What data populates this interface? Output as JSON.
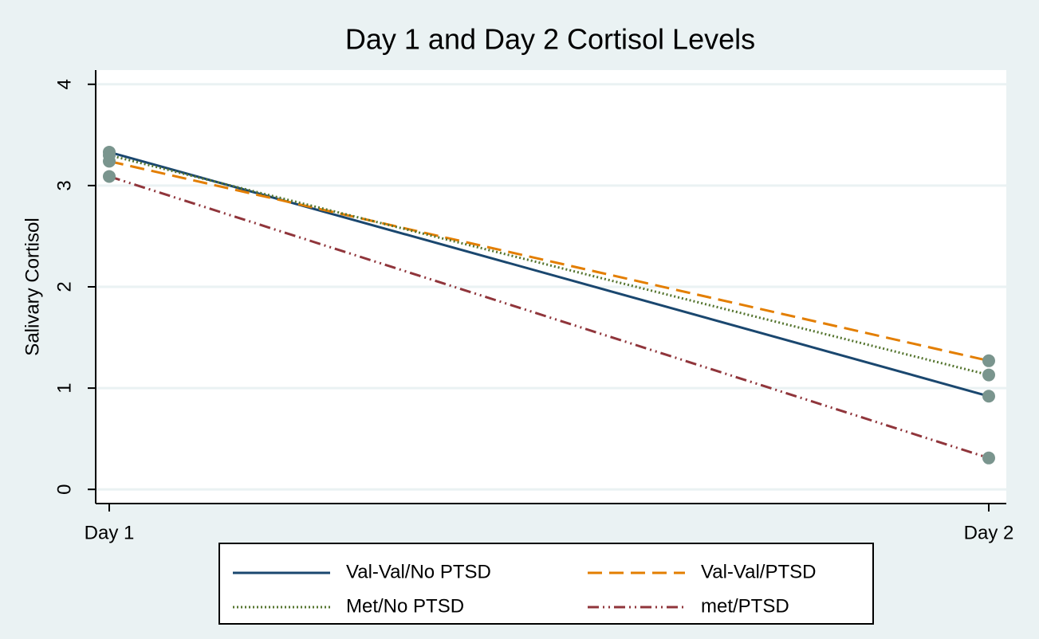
{
  "chart_data": {
    "type": "line",
    "title": "Day 1 and Day 2 Cortisol Levels",
    "y_label": "Salivary Cortisol",
    "categories": [
      "Day 1",
      "Day 2"
    ],
    "series": [
      {
        "name": "Val-Val/No PTSD",
        "color": "#1a476f",
        "style": "solid",
        "values": [
          3.33,
          0.92
        ]
      },
      {
        "name": "Val-Val/PTSD",
        "color": "#e37e00",
        "style": "dash",
        "values": [
          3.24,
          1.27
        ]
      },
      {
        "name": "Met/No PTSD",
        "color": "#55752f",
        "style": "dot",
        "values": [
          3.3,
          1.13
        ]
      },
      {
        "name": "met/PTSD",
        "color": "#90353b",
        "style": "dash-dot-dot",
        "values": [
          3.09,
          0.31
        ]
      }
    ],
    "marker_color": "#7a958e",
    "ylim": [
      -0.14,
      4.14
    ],
    "yticks": [
      0,
      1,
      2,
      3,
      4
    ],
    "grid": true,
    "legend": "bottom"
  }
}
